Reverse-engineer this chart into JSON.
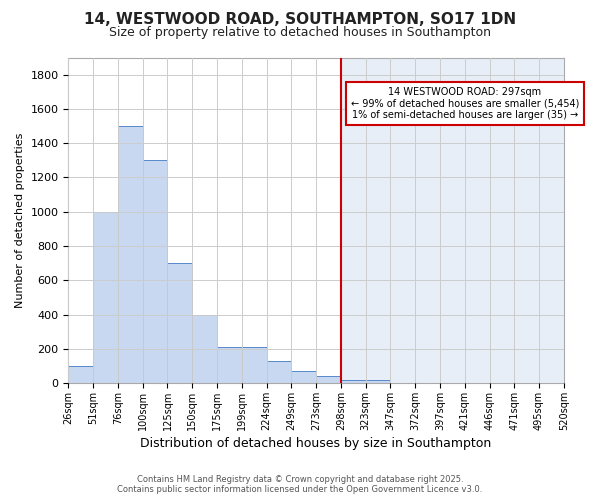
{
  "title": "14, WESTWOOD ROAD, SOUTHAMPTON, SO17 1DN",
  "subtitle": "Size of property relative to detached houses in Southampton",
  "xlabel": "Distribution of detached houses by size in Southampton",
  "ylabel": "Number of detached properties",
  "bin_labels": [
    "26sqm",
    "51sqm",
    "76sqm",
    "100sqm",
    "125sqm",
    "150sqm",
    "175sqm",
    "199sqm",
    "224sqm",
    "249sqm",
    "273sqm",
    "298sqm",
    "323sqm",
    "347sqm",
    "372sqm",
    "397sqm",
    "421sqm",
    "446sqm",
    "471sqm",
    "495sqm",
    "520sqm"
  ],
  "bar_values": [
    100,
    1000,
    1500,
    1300,
    700,
    400,
    210,
    210,
    130,
    70,
    40,
    20,
    15,
    0,
    0,
    0,
    0,
    0,
    0,
    0
  ],
  "bar_color": "#c8d8f0",
  "bar_edge_color": "#5588cc",
  "highlight_bar_index": 11,
  "highlight_line_color": "#cc0000",
  "annotation_line1": "14 WESTWOOD ROAD: 297sqm",
  "annotation_line2": "← 99% of detached houses are smaller (5,454)",
  "annotation_line3": "1% of semi-detached houses are larger (35) →",
  "annotation_box_edge": "#cc0000",
  "ylim": [
    0,
    1900
  ],
  "yticks": [
    0,
    200,
    400,
    600,
    800,
    1000,
    1200,
    1400,
    1600,
    1800
  ],
  "background_color": "#ffffff",
  "right_bg_color": "#e8eef8",
  "grid_color": "#cccccc",
  "footer_line1": "Contains HM Land Registry data © Crown copyright and database right 2025.",
  "footer_line2": "Contains public sector information licensed under the Open Government Licence v3.0."
}
